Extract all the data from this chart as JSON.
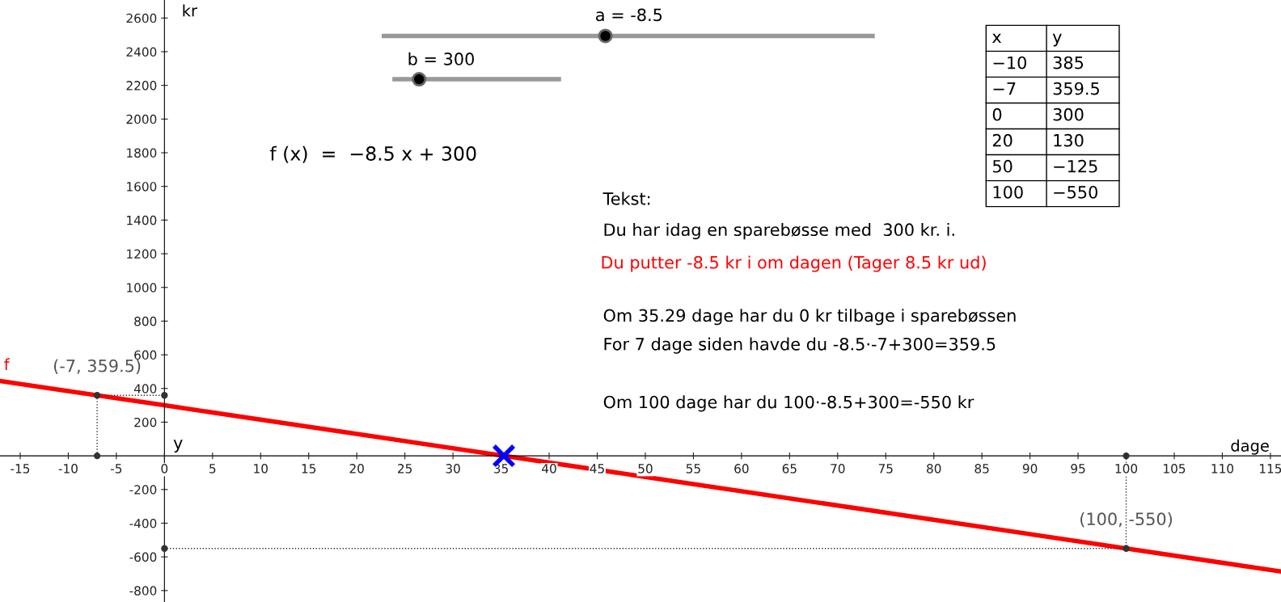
{
  "chart_data": {
    "type": "line",
    "xlabel": "dage",
    "ylabel": "kr",
    "xlim": [
      -17.1,
      116.1
    ],
    "ylim": [
      -868,
      2707
    ],
    "xticks": [
      -15,
      -10,
      -5,
      0,
      5,
      10,
      15,
      20,
      25,
      30,
      35,
      40,
      45,
      50,
      55,
      60,
      65,
      70,
      75,
      80,
      85,
      90,
      95,
      100,
      105,
      110,
      115
    ],
    "yticks": [
      -800,
      -600,
      -400,
      -200,
      200,
      400,
      600,
      800,
      1000,
      1200,
      1400,
      1600,
      1800,
      2000,
      2200,
      2400,
      2600
    ],
    "grid": false,
    "legend": false,
    "series": [
      {
        "name": "f",
        "color": "#ff0000",
        "x": [
          -17.1,
          -10,
          -7,
          0,
          20,
          50,
          100,
          116.1
        ],
        "values": [
          445,
          385,
          359.5,
          300,
          130,
          -125,
          -550,
          -687
        ]
      },
      {
        "type": "line",
        "line_style": "dotted",
        "marker": "circle",
        "color": "#333333",
        "x": [
          -7,
          -7,
          0
        ],
        "values": [
          0,
          359.5,
          359.5
        ]
      },
      {
        "type": "line",
        "line_style": "dotted",
        "marker": "circle",
        "color": "#333333",
        "x": [
          100,
          100,
          0
        ],
        "values": [
          0,
          -550,
          -550
        ]
      },
      {
        "type": "scatter",
        "marker": "cross",
        "color": "#0000ff",
        "x": [
          35.29
        ],
        "values": [
          0
        ]
      }
    ],
    "annotations": [
      "a = -8.5",
      "b = 300",
      "f (x)  =  −8.5 x + 300",
      "Tekst:",
      "Du har idag en sparebøsse med  300 kr. i.",
      "Du putter -8.5 kr i om dagen (Tager 8.5 kr ud)",
      "Om 35.29 dage har du 0 kr tilbage i sparebøssen",
      "For 7 dage siden havde du -8.5·-7+300=359.5",
      "Om 100 dage har du 100·-8.5+300=-550 kr",
      {
        "text": "(-7, 359.5)",
        "x": -7,
        "y": 359.5
      },
      {
        "text": "(100, -550)",
        "x": 100,
        "y": -550
      },
      "y",
      "x",
      "y",
      "−10",
      "385",
      "−7",
      "359.5",
      "0",
      "300",
      "20",
      "130",
      "50",
      "−125",
      "100",
      "−550"
    ]
  }
}
